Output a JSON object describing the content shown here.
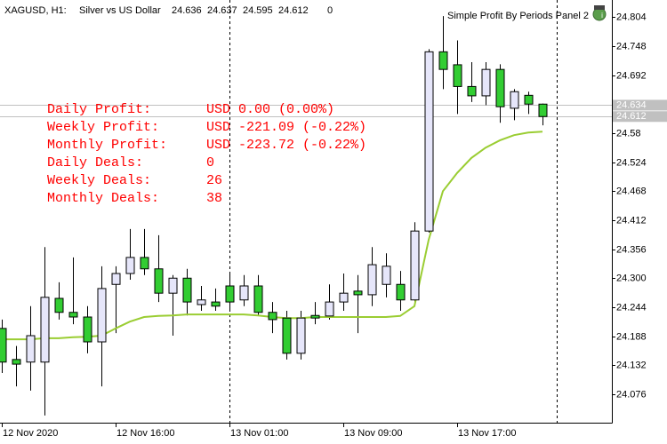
{
  "chart_data": {
    "type": "candlestick",
    "symbol": "XAGUSD, H1:",
    "title": "Silver vs US Dollar",
    "volume": 0,
    "indicator_title": "Simple Profit By Periods Panel 2",
    "categories": [
      "12 Nov 2020",
      null,
      null,
      null,
      null,
      null,
      null,
      null,
      "12 Nov 16:00",
      null,
      null,
      null,
      null,
      null,
      null,
      null,
      "13 Nov 01:00",
      null,
      null,
      null,
      null,
      null,
      null,
      null,
      "13 Nov 09:00",
      null,
      null,
      null,
      null,
      null,
      null,
      null,
      "13 Nov 17:00",
      null,
      null,
      null,
      null,
      null,
      null
    ],
    "open": [
      24.203,
      24.143,
      24.138,
      24.138,
      24.261,
      24.234,
      24.225,
      24.177,
      24.288,
      24.309,
      24.34,
      24.318,
      24.271,
      24.3,
      24.249,
      24.254,
      24.285,
      24.258,
      24.285,
      24.234,
      24.223,
      24.155,
      24.228,
      24.227,
      24.254,
      24.275,
      24.268,
      24.288,
      24.288,
      24.258,
      24.391,
      24.737,
      24.712,
      24.67,
      24.652,
      24.703,
      24.628,
      24.653,
      24.636
    ],
    "high": [
      24.22,
      24.169,
      24.246,
      24.36,
      24.292,
      24.34,
      24.246,
      24.323,
      24.323,
      24.395,
      24.395,
      24.383,
      24.306,
      24.318,
      24.285,
      24.28,
      24.309,
      24.306,
      24.306,
      24.254,
      24.237,
      24.237,
      24.254,
      24.288,
      24.309,
      24.306,
      24.36,
      24.348,
      24.314,
      24.408,
      24.742,
      24.806,
      24.759,
      24.717,
      24.717,
      24.713,
      24.665,
      24.66,
      24.637
    ],
    "low": [
      24.117,
      24.091,
      24.083,
      24.035,
      24.22,
      24.211,
      24.155,
      24.091,
      24.194,
      24.297,
      24.306,
      24.254,
      24.189,
      24.228,
      24.237,
      24.237,
      24.237,
      24.246,
      24.228,
      24.194,
      24.143,
      24.143,
      24.211,
      24.22,
      24.237,
      24.194,
      24.246,
      24.263,
      24.237,
      24.246,
      24.388,
      24.665,
      24.617,
      24.64,
      24.634,
      24.6,
      24.605,
      24.617,
      24.595
    ],
    "close": [
      24.138,
      24.134,
      24.189,
      24.263,
      24.234,
      24.225,
      24.177,
      24.28,
      24.309,
      24.34,
      24.318,
      24.271,
      24.3,
      24.254,
      24.258,
      24.246,
      24.254,
      24.285,
      24.234,
      24.22,
      24.155,
      24.223,
      24.223,
      24.254,
      24.271,
      24.268,
      24.326,
      24.323,
      24.258,
      24.391,
      24.737,
      24.703,
      24.67,
      24.652,
      24.703,
      24.631,
      24.66,
      24.636,
      24.612
    ],
    "up_color": "#e6e6fa",
    "down_color": "#32cd32",
    "moving_average": {
      "color": "#9acd32",
      "values": [
        24.182,
        24.182,
        24.182,
        24.184,
        24.184,
        24.186,
        24.187,
        24.189,
        24.203,
        24.216,
        24.225,
        24.227,
        24.228,
        24.23,
        24.23,
        24.23,
        24.23,
        24.23,
        24.228,
        24.225,
        24.223,
        24.223,
        24.225,
        24.225,
        24.225,
        24.225,
        24.225,
        24.225,
        24.227,
        24.246,
        24.374,
        24.468,
        24.503,
        24.532,
        24.552,
        24.566,
        24.576,
        24.581,
        24.583
      ]
    },
    "ylim": [
      24.021,
      24.837
    ],
    "yticks": [
      24.804,
      24.748,
      24.692,
      24.58,
      24.524,
      24.468,
      24.412,
      24.356,
      {
        "value": 24.3,
        "label": "24.300"
      },
      24.244,
      24.188,
      24.132,
      24.076
    ],
    "price_labels": [
      24.634,
      24.612
    ],
    "panel": {
      "color": "#ff0000",
      "rows": [
        {
          "label": "Daily Profit:",
          "value": "USD 0.00 (0.00%)"
        },
        {
          "label": "Weekly Profit:",
          "value": "USD -221.09 (-0.22%)"
        },
        {
          "label": "Monthly Profit:",
          "value": "USD -223.72 (-0.22%)"
        },
        {
          "label": "Daily Deals:",
          "value": "0"
        },
        {
          "label": "Weekly Deals:",
          "value": "26"
        },
        {
          "label": "Monthly Deals:",
          "value": "38"
        }
      ]
    }
  }
}
